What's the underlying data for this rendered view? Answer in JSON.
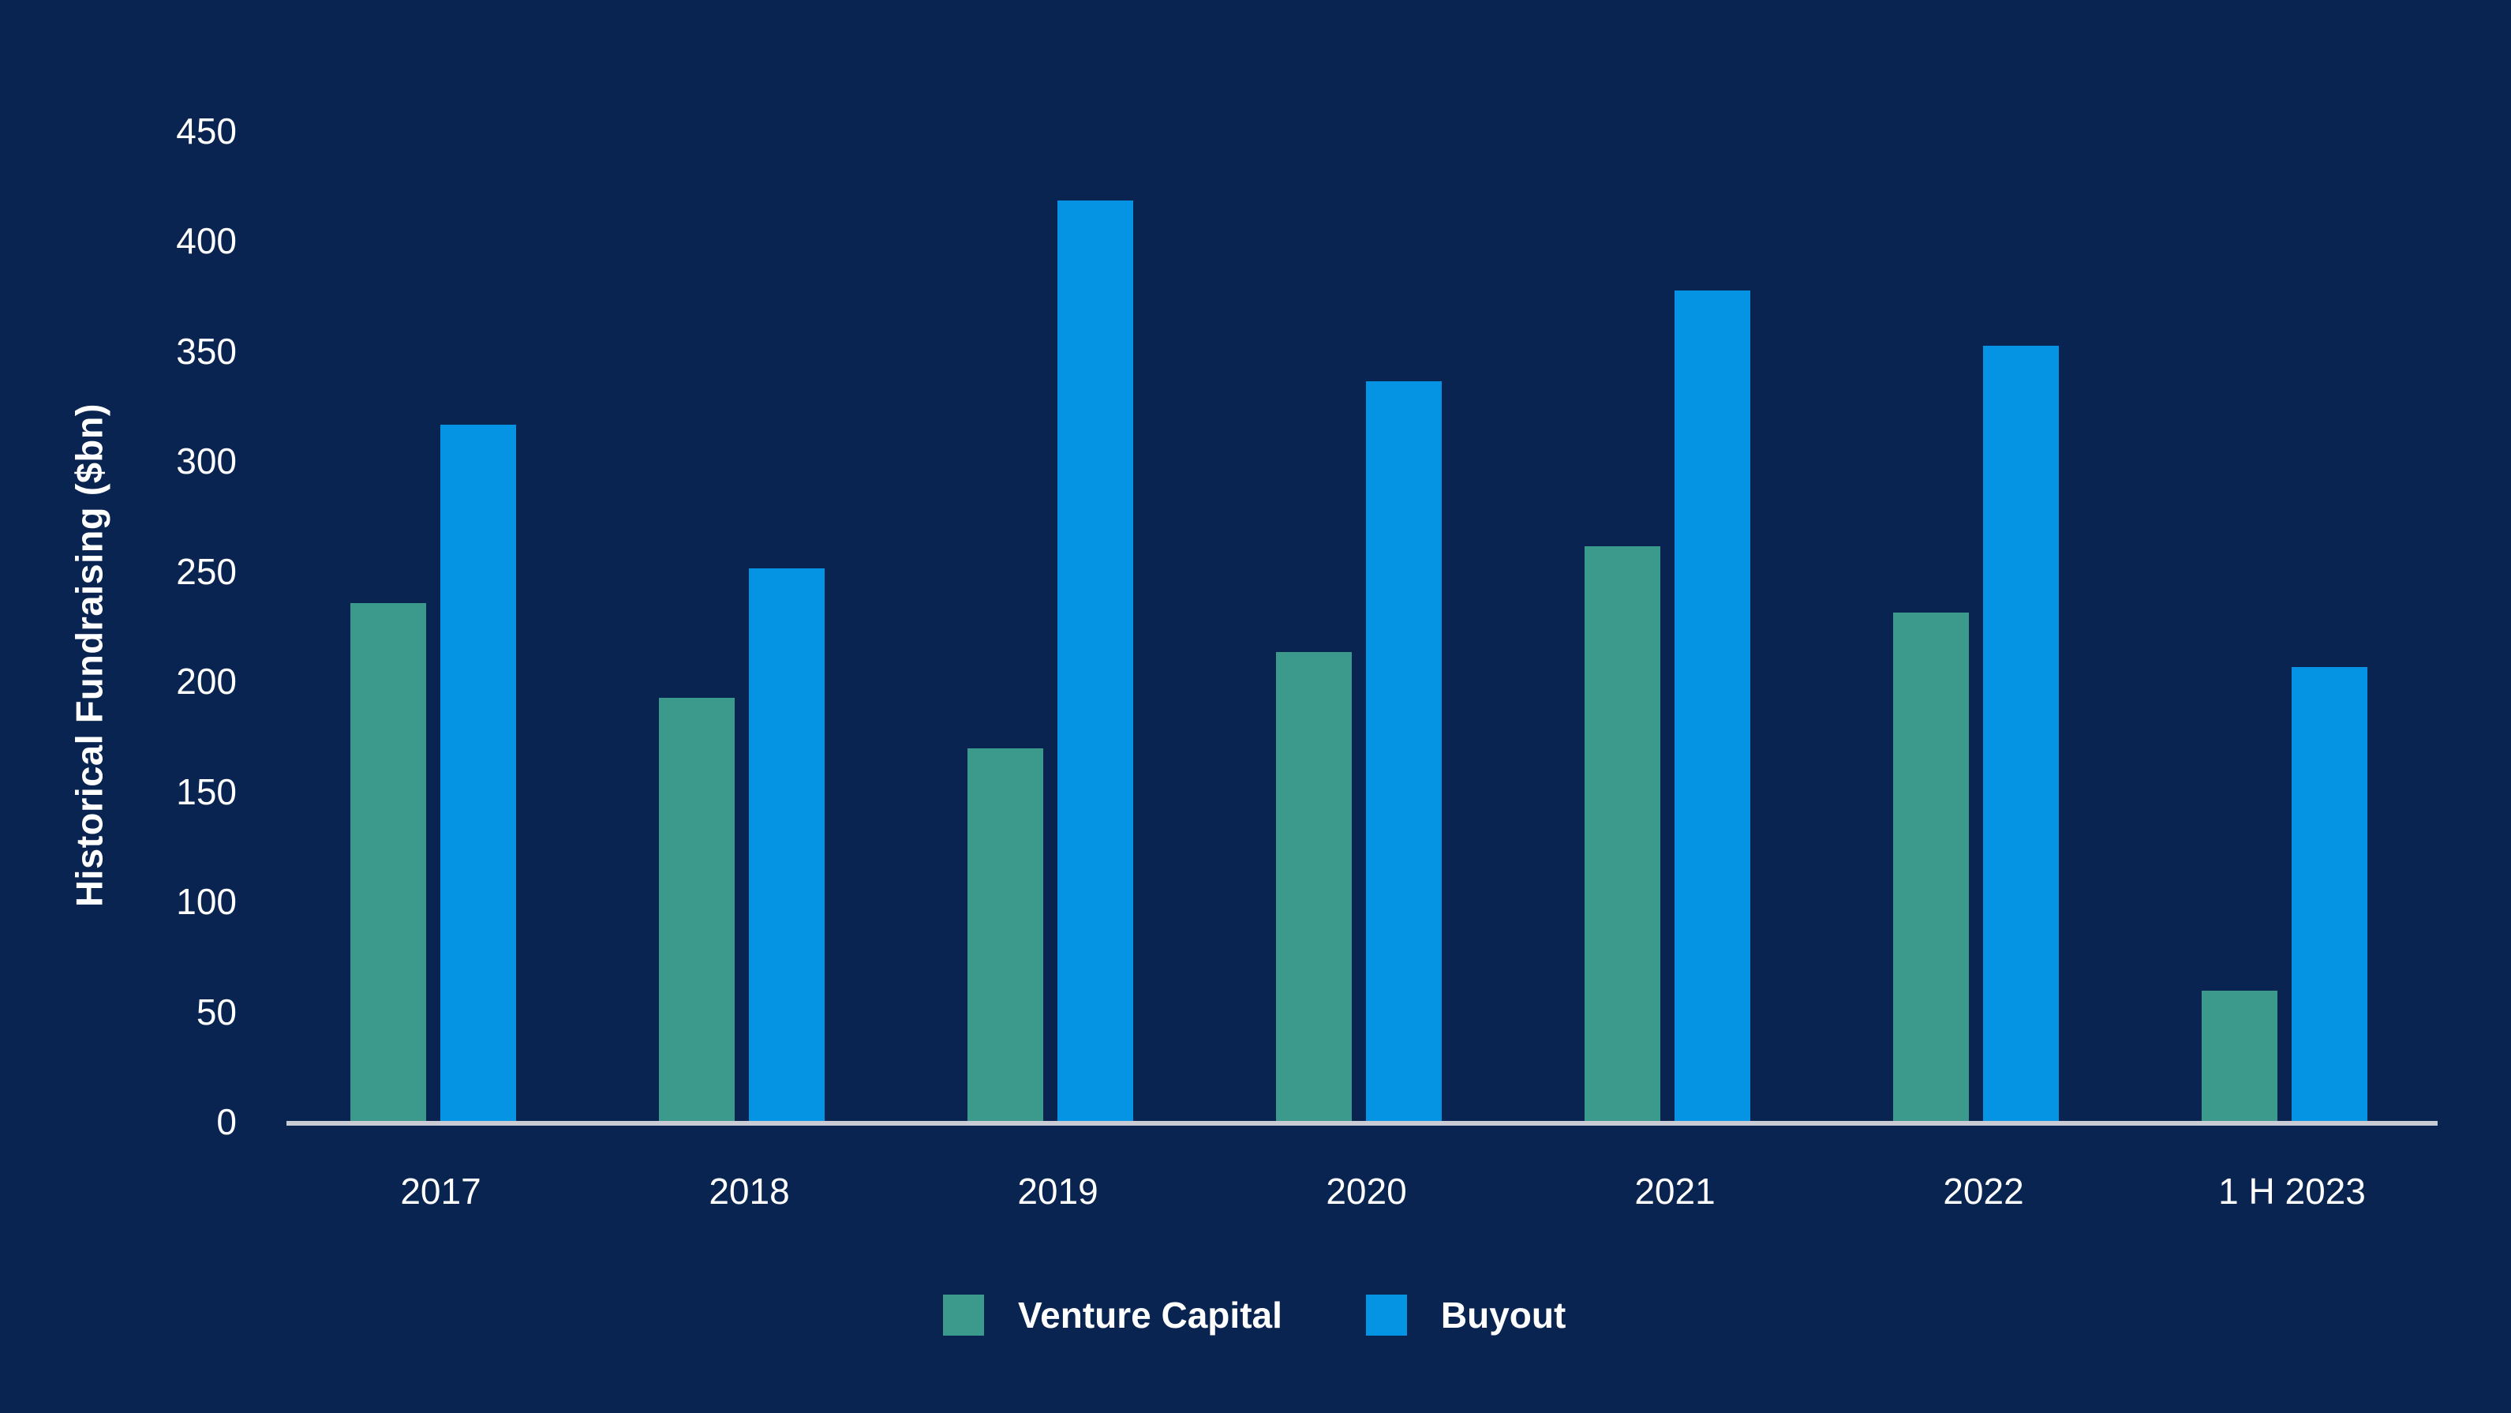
{
  "chart_data": {
    "type": "bar",
    "title": "",
    "ylabel": "Historical Fundraising ($bn)",
    "xlabel": "",
    "categories": [
      "2017",
      "2018",
      "2019",
      "2020",
      "2021",
      "2022",
      "1 H 2023"
    ],
    "series": [
      {
        "name": "Venture Capital",
        "color": "#3B9A8C",
        "values": [
          235,
          192,
          169,
          213,
          261,
          231,
          59
        ]
      },
      {
        "name": "Buyout",
        "color": "#0494E3",
        "values": [
          316,
          251,
          418,
          336,
          377,
          352,
          206
        ]
      }
    ],
    "y_ticks": [
      0,
      50,
      100,
      150,
      200,
      250,
      300,
      350,
      400,
      450
    ],
    "ylim": [
      0,
      450
    ],
    "grid": false,
    "legend_position": "bottom",
    "colors": {
      "background": "#092450",
      "axis_line": "#C9CCD4",
      "text": "#FFFFFF"
    }
  }
}
